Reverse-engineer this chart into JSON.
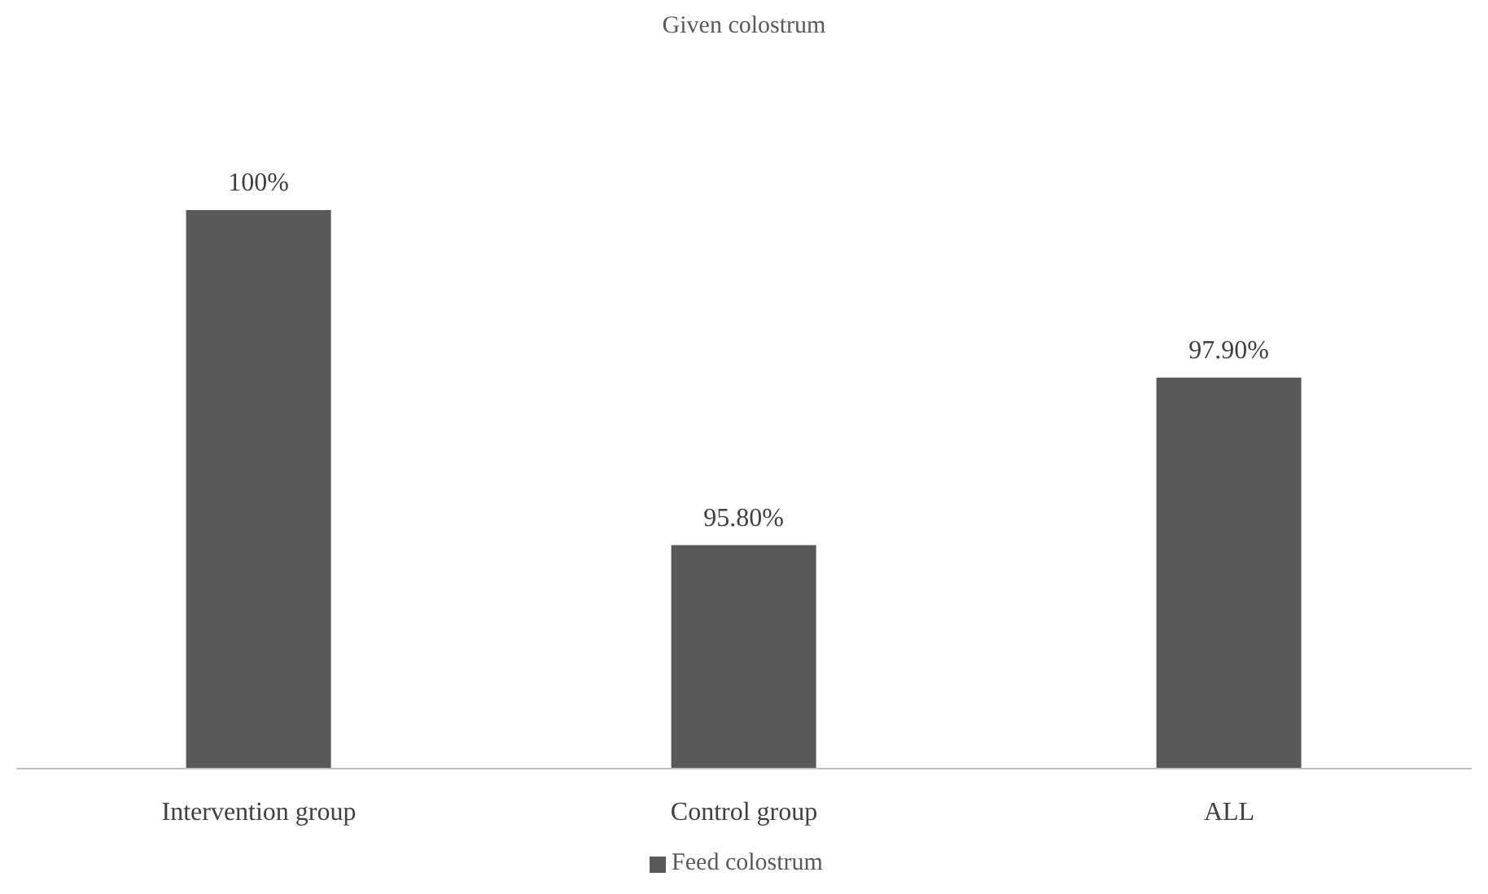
{
  "chart_data": {
    "type": "bar",
    "title": "Given colostrum",
    "categories": [
      "Intervention group",
      "Control group",
      "ALL"
    ],
    "series": [
      {
        "name": "Feed colostrum",
        "color": "#595959",
        "values": [
          100,
          95.8,
          97.9
        ],
        "value_labels": [
          "100%",
          "95.80%",
          "97.90%"
        ]
      }
    ],
    "ylim": [
      93,
      100
    ],
    "tick_labels": "x",
    "grid": false,
    "legend": "bottom"
  }
}
